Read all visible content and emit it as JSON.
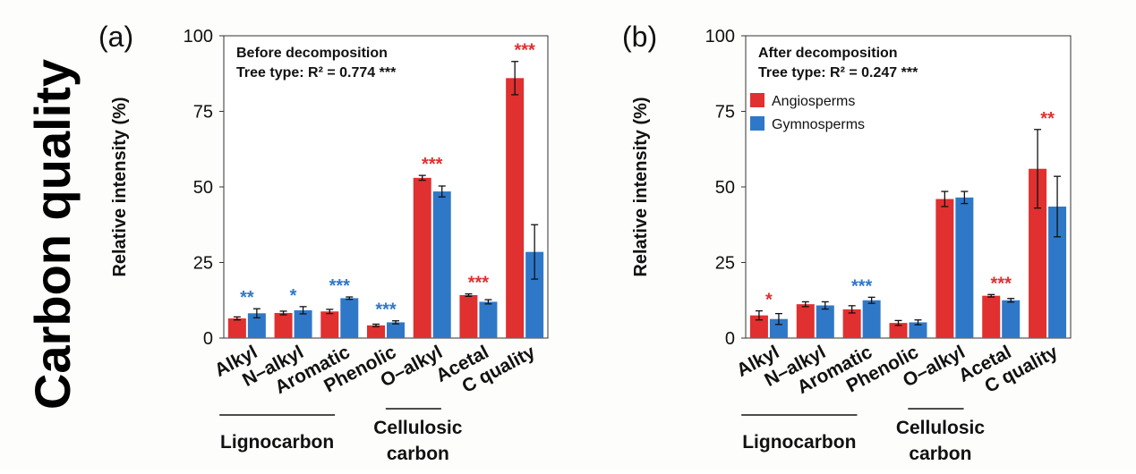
{
  "figure": {
    "side_title": "Carbon quality",
    "legend": {
      "items": [
        "Angiosperms",
        "Gymnosperms"
      ]
    },
    "colors": {
      "angiosperms": "#e03030",
      "gymnosperms": "#2f78c8",
      "sig_red": "#e03030",
      "sig_blue": "#2f78c8"
    }
  },
  "chart_data": [
    {
      "type": "bar",
      "panel_label": "(a)",
      "annotation_line1": "Before decomposition",
      "annotation_line2": "Tree type: R² = 0.774 ***",
      "ylabel": "Relative intensity (%)",
      "ylim": [
        0,
        100
      ],
      "yticks": [
        "0",
        "25",
        "50",
        "75",
        "100"
      ],
      "categories": [
        "Alkyl",
        "N–alkyl",
        "Aromatic",
        "Phenolic",
        "O–alkyl",
        "Acetal",
        "C quality"
      ],
      "series": [
        {
          "name": "Angiosperms",
          "values": [
            6.5,
            8.3,
            8.8,
            4.2,
            53.0,
            14.2,
            86.0
          ],
          "errors": [
            0.5,
            0.6,
            0.7,
            0.4,
            0.8,
            0.4,
            5.5
          ]
        },
        {
          "name": "Gymnosperms",
          "values": [
            8.2,
            9.2,
            13.2,
            5.2,
            48.5,
            12.0,
            28.5
          ],
          "errors": [
            1.5,
            1.2,
            0.4,
            0.5,
            1.8,
            0.7,
            9.0
          ]
        }
      ],
      "significance": [
        {
          "text": "**",
          "color": "blue"
        },
        {
          "text": "*",
          "color": "blue"
        },
        {
          "text": "***",
          "color": "blue"
        },
        {
          "text": "***",
          "color": "blue"
        },
        {
          "text": "***",
          "color": "red"
        },
        {
          "text": "***",
          "color": "red"
        },
        {
          "text": "***",
          "color": "red"
        }
      ],
      "groups": [
        "Lignocarbon",
        "Cellulosic carbon"
      ],
      "legend": false
    },
    {
      "type": "bar",
      "panel_label": "(b)",
      "annotation_line1": "After decomposition",
      "annotation_line2": "Tree type: R² = 0.247 ***",
      "ylabel": "Relative intensity (%)",
      "ylim": [
        0,
        100
      ],
      "yticks": [
        "0",
        "25",
        "50",
        "75",
        "100"
      ],
      "categories": [
        "Alkyl",
        "N–alkyl",
        "Aromatic",
        "Phenolic",
        "O–alkyl",
        "Acetal",
        "C quality"
      ],
      "series": [
        {
          "name": "Angiosperms",
          "values": [
            7.5,
            11.2,
            9.5,
            5.0,
            46.0,
            14.0,
            56.0
          ],
          "errors": [
            1.5,
            0.8,
            1.2,
            0.8,
            2.5,
            0.4,
            13.0
          ]
        },
        {
          "name": "Gymnosperms",
          "values": [
            6.3,
            10.8,
            12.5,
            5.2,
            46.5,
            12.5,
            43.5
          ],
          "errors": [
            1.8,
            1.2,
            1.0,
            0.8,
            2.0,
            0.6,
            10.0
          ]
        }
      ],
      "significance": [
        {
          "text": "*",
          "color": "red"
        },
        {
          "text": "",
          "color": "red"
        },
        {
          "text": "***",
          "color": "blue"
        },
        {
          "text": "",
          "color": "red"
        },
        {
          "text": "",
          "color": "red"
        },
        {
          "text": "***",
          "color": "red"
        },
        {
          "text": "**",
          "color": "red"
        }
      ],
      "groups": [
        "Lignocarbon",
        "Cellulosic carbon"
      ],
      "legend": true
    }
  ]
}
